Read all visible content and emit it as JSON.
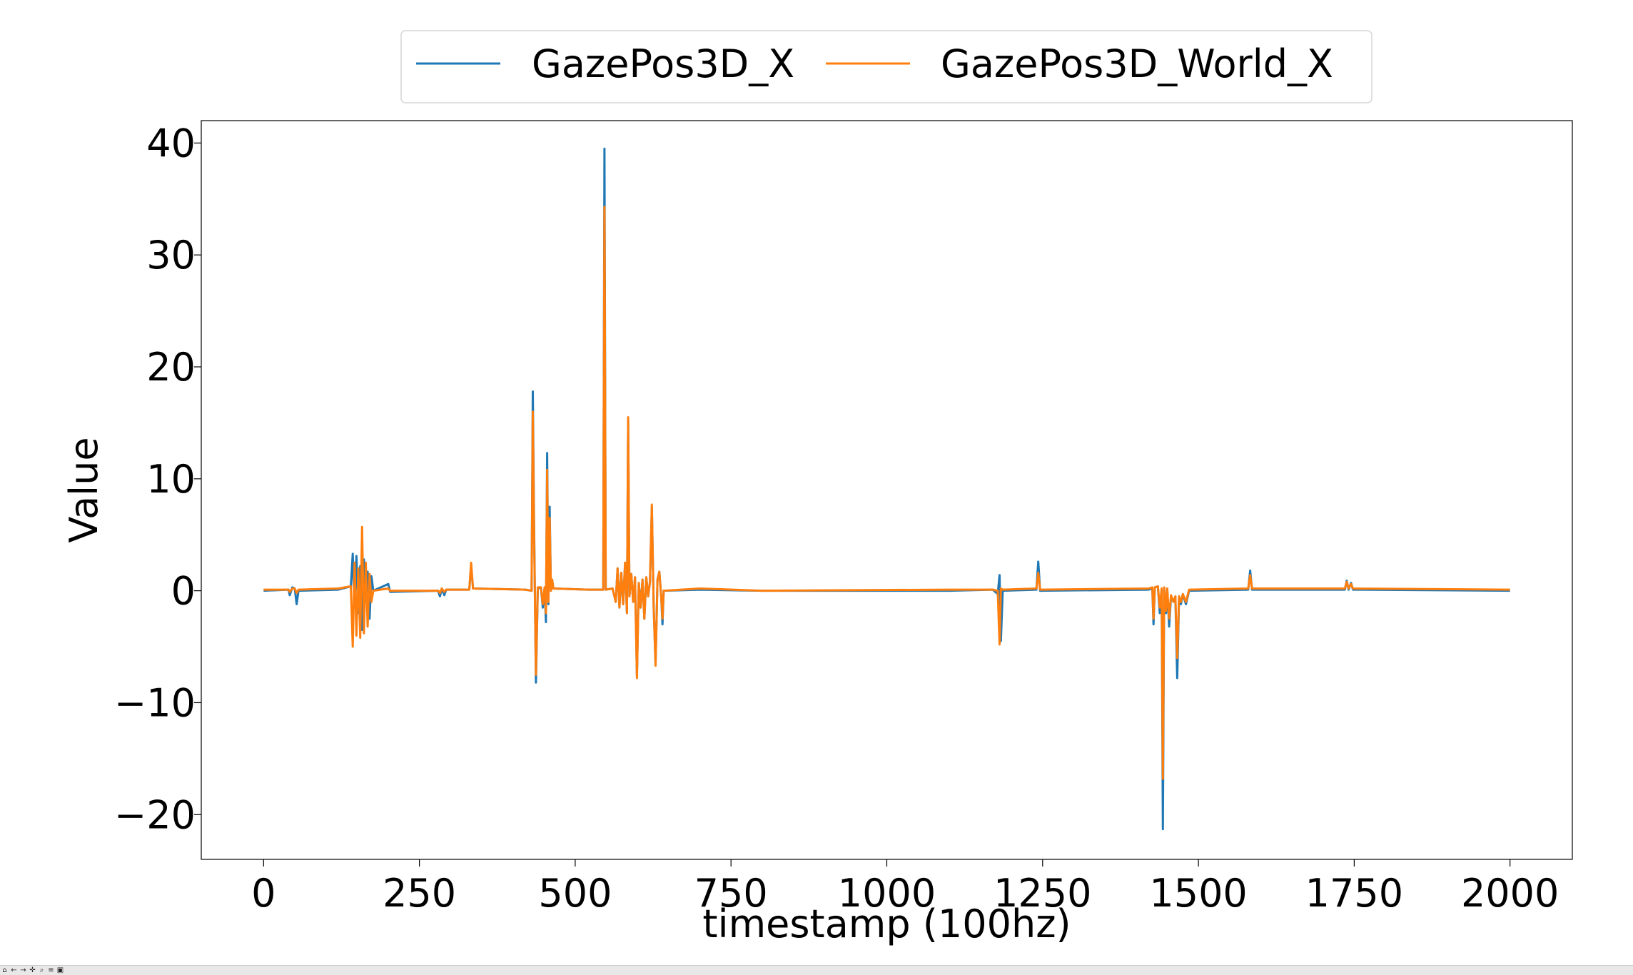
{
  "chart_data": {
    "type": "line",
    "xlabel": "timestamp (100hz)",
    "ylabel": "Value",
    "xlim": [
      -100,
      2100
    ],
    "ylim": [
      -24,
      42
    ],
    "xticks": [
      0,
      250,
      500,
      750,
      1000,
      1250,
      1500,
      1750,
      2000
    ],
    "yticks": [
      -20,
      -10,
      0,
      10,
      20,
      30,
      40
    ],
    "xtick_labels": [
      "0",
      "250",
      "500",
      "750",
      "1000",
      "1250",
      "1500",
      "1750",
      "2000"
    ],
    "ytick_labels": [
      "−20",
      "−10",
      "0",
      "10",
      "20",
      "30",
      "40"
    ],
    "legend_position": "top-center",
    "grid": false,
    "series": [
      {
        "name": "GazePos3D_X",
        "color": "#1f77b4",
        "points": [
          [
            0,
            0
          ],
          [
            40,
            0.1
          ],
          [
            42,
            -0.4
          ],
          [
            46,
            0.3
          ],
          [
            50,
            0.2
          ],
          [
            53,
            -1.2
          ],
          [
            56,
            0
          ],
          [
            120,
            0.1
          ],
          [
            140,
            0.4
          ],
          [
            143,
            3.3
          ],
          [
            146,
            -1.5
          ],
          [
            149,
            3.1
          ],
          [
            152,
            -2
          ],
          [
            155,
            2.2
          ],
          [
            158,
            -3.5
          ],
          [
            161,
            2.8
          ],
          [
            164,
            -1
          ],
          [
            167,
            1.7
          ],
          [
            170,
            -2.5
          ],
          [
            173,
            1.3
          ],
          [
            176,
            0
          ],
          [
            200,
            0.6
          ],
          [
            203,
            -0.1
          ],
          [
            280,
            0
          ],
          [
            283,
            -0.5
          ],
          [
            286,
            0.2
          ],
          [
            290,
            -0.4
          ],
          [
            293,
            0.1
          ],
          [
            330,
            0.1
          ],
          [
            333,
            2.3
          ],
          [
            336,
            0.2
          ],
          [
            420,
            0.1
          ],
          [
            430,
            0
          ],
          [
            432,
            17.8
          ],
          [
            434,
            6
          ],
          [
            437,
            -8.2
          ],
          [
            440,
            0.2
          ],
          [
            445,
            0.3
          ],
          [
            448,
            -1.5
          ],
          [
            451,
            0.3
          ],
          [
            453,
            -2.8
          ],
          [
            455,
            12.3
          ],
          [
            457,
            -1.2
          ],
          [
            459,
            7.5
          ],
          [
            461,
            0
          ],
          [
            463,
            1
          ],
          [
            465,
            0.2
          ],
          [
            520,
            0.1
          ],
          [
            545,
            0.1
          ],
          [
            547,
            39.5
          ],
          [
            549,
            0.1
          ],
          [
            560,
            0.2
          ],
          [
            565,
            -1
          ],
          [
            568,
            2
          ],
          [
            571,
            -1.5
          ],
          [
            574,
            1.6
          ],
          [
            577,
            -1.2
          ],
          [
            580,
            2.5
          ],
          [
            583,
            -2
          ],
          [
            585,
            15.2
          ],
          [
            587,
            -0.5
          ],
          [
            590,
            1.5
          ],
          [
            593,
            -1
          ],
          [
            596,
            1.2
          ],
          [
            599,
            -7.5
          ],
          [
            602,
            0.7
          ],
          [
            605,
            -1.5
          ],
          [
            608,
            1
          ],
          [
            611,
            -2.5
          ],
          [
            614,
            1.2
          ],
          [
            617,
            -0.5
          ],
          [
            620,
            0.8
          ],
          [
            623,
            7.5
          ],
          [
            626,
            -1.5
          ],
          [
            629,
            -6.5
          ],
          [
            632,
            1
          ],
          [
            635,
            1.7
          ],
          [
            638,
            -0.5
          ],
          [
            640,
            -3
          ],
          [
            642,
            0
          ],
          [
            700,
            0.1
          ],
          [
            800,
            0
          ],
          [
            1100,
            0
          ],
          [
            1170,
            0.1
          ],
          [
            1178,
            -0.3
          ],
          [
            1181,
            1.4
          ],
          [
            1183,
            -4.5
          ],
          [
            1186,
            0
          ],
          [
            1240,
            0.1
          ],
          [
            1243,
            2.6
          ],
          [
            1246,
            0
          ],
          [
            1420,
            0.1
          ],
          [
            1426,
            0.2
          ],
          [
            1428,
            -3
          ],
          [
            1430,
            0.3
          ],
          [
            1435,
            0.4
          ],
          [
            1438,
            -2
          ],
          [
            1441,
            0.1
          ],
          [
            1443,
            -21.3
          ],
          [
            1445,
            0.2
          ],
          [
            1448,
            -2
          ],
          [
            1450,
            0.2
          ],
          [
            1453,
            -3.2
          ],
          [
            1456,
            -0.5
          ],
          [
            1460,
            -1
          ],
          [
            1463,
            -0.5
          ],
          [
            1466,
            -7.8
          ],
          [
            1469,
            -0.5
          ],
          [
            1472,
            -1.2
          ],
          [
            1475,
            -0.3
          ],
          [
            1480,
            -1.2
          ],
          [
            1485,
            0
          ],
          [
            1580,
            0.1
          ],
          [
            1583,
            1.8
          ],
          [
            1586,
            0.1
          ],
          [
            1735,
            0.1
          ],
          [
            1738,
            0.9
          ],
          [
            1741,
            0.1
          ],
          [
            1745,
            0.7
          ],
          [
            1748,
            0.1
          ],
          [
            2000,
            0
          ]
        ]
      },
      {
        "name": "GazePos3D_World_X",
        "color": "#ff7f0e",
        "points": [
          [
            0,
            0.1
          ],
          [
            40,
            0.1
          ],
          [
            42,
            -0.1
          ],
          [
            46,
            0.2
          ],
          [
            50,
            0.2
          ],
          [
            53,
            -0.2
          ],
          [
            56,
            0.1
          ],
          [
            120,
            0.2
          ],
          [
            140,
            0.4
          ],
          [
            143,
            -5
          ],
          [
            146,
            2.5
          ],
          [
            149,
            -4
          ],
          [
            152,
            2
          ],
          [
            155,
            -4.2
          ],
          [
            158,
            5.7
          ],
          [
            161,
            -3.8
          ],
          [
            164,
            2.5
          ],
          [
            167,
            -3.2
          ],
          [
            170,
            1.5
          ],
          [
            173,
            -1
          ],
          [
            176,
            0
          ],
          [
            200,
            0.2
          ],
          [
            203,
            0
          ],
          [
            280,
            0
          ],
          [
            283,
            -0.2
          ],
          [
            286,
            0.2
          ],
          [
            290,
            -0.1
          ],
          [
            293,
            0.1
          ],
          [
            330,
            0.1
          ],
          [
            333,
            2.5
          ],
          [
            336,
            0.2
          ],
          [
            420,
            0.1
          ],
          [
            430,
            0
          ],
          [
            432,
            16
          ],
          [
            434,
            5
          ],
          [
            437,
            -7.5
          ],
          [
            440,
            0.3
          ],
          [
            445,
            0.3
          ],
          [
            448,
            -1.2
          ],
          [
            451,
            0.3
          ],
          [
            453,
            -2
          ],
          [
            455,
            10.8
          ],
          [
            457,
            -1
          ],
          [
            459,
            6.5
          ],
          [
            461,
            0
          ],
          [
            463,
            1
          ],
          [
            465,
            0.2
          ],
          [
            520,
            0.1
          ],
          [
            545,
            0.1
          ],
          [
            547,
            34.3
          ],
          [
            549,
            0.1
          ],
          [
            560,
            0.2
          ],
          [
            565,
            -1
          ],
          [
            568,
            2
          ],
          [
            571,
            -1.5
          ],
          [
            574,
            1.6
          ],
          [
            577,
            -1.2
          ],
          [
            580,
            2.5
          ],
          [
            583,
            -2
          ],
          [
            585,
            15.5
          ],
          [
            587,
            -0.5
          ],
          [
            590,
            1.5
          ],
          [
            593,
            -1
          ],
          [
            596,
            1.2
          ],
          [
            599,
            -7.8
          ],
          [
            602,
            0.7
          ],
          [
            605,
            -1.5
          ],
          [
            608,
            1
          ],
          [
            611,
            -2.5
          ],
          [
            614,
            1.2
          ],
          [
            617,
            -0.5
          ],
          [
            620,
            0.8
          ],
          [
            623,
            7.7
          ],
          [
            626,
            -1.5
          ],
          [
            629,
            -6.7
          ],
          [
            632,
            1
          ],
          [
            635,
            1.7
          ],
          [
            638,
            -0.5
          ],
          [
            640,
            -2.5
          ],
          [
            642,
            0
          ],
          [
            700,
            0.2
          ],
          [
            800,
            0
          ],
          [
            1100,
            0.1
          ],
          [
            1170,
            0.1
          ],
          [
            1178,
            0
          ],
          [
            1181,
            -4.8
          ],
          [
            1183,
            0.2
          ],
          [
            1186,
            0.1
          ],
          [
            1240,
            0.2
          ],
          [
            1243,
            1.6
          ],
          [
            1246,
            0.1
          ],
          [
            1420,
            0.2
          ],
          [
            1426,
            0.3
          ],
          [
            1428,
            -2.5
          ],
          [
            1430,
            0.3
          ],
          [
            1435,
            0.4
          ],
          [
            1438,
            -1.5
          ],
          [
            1441,
            0.2
          ],
          [
            1443,
            -16.8
          ],
          [
            1445,
            0.3
          ],
          [
            1448,
            -1.8
          ],
          [
            1450,
            0.2
          ],
          [
            1453,
            -2.5
          ],
          [
            1456,
            -0.4
          ],
          [
            1460,
            -1
          ],
          [
            1463,
            -0.5
          ],
          [
            1466,
            -6
          ],
          [
            1469,
            -0.5
          ],
          [
            1472,
            -1
          ],
          [
            1475,
            -0.3
          ],
          [
            1480,
            -1
          ],
          [
            1485,
            0.1
          ],
          [
            1580,
            0.2
          ],
          [
            1583,
            1.4
          ],
          [
            1586,
            0.2
          ],
          [
            1735,
            0.2
          ],
          [
            1738,
            0.8
          ],
          [
            1741,
            0.2
          ],
          [
            1745,
            0.6
          ],
          [
            1748,
            0.2
          ],
          [
            2000,
            0.1
          ]
        ]
      }
    ]
  },
  "toolbar": {
    "icons": [
      "home-icon",
      "back-icon",
      "forward-icon",
      "pan-icon",
      "zoom-icon",
      "configure-icon",
      "save-icon"
    ],
    "home": "⌂",
    "back": "←",
    "forward": "→",
    "pan": "✛",
    "zoom": "⌕",
    "configure": "≡",
    "save": "▣"
  }
}
